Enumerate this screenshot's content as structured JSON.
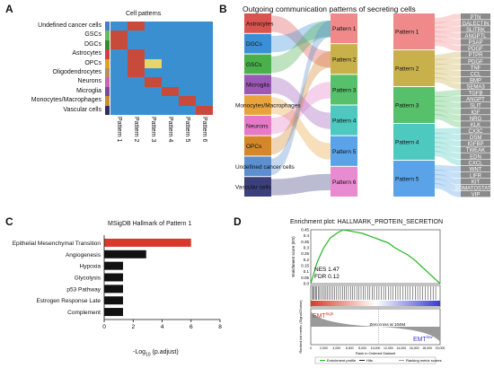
{
  "panels": {
    "a": {
      "label": "A",
      "title": "Cell patterns",
      "rows": [
        "Undefined cancer cells",
        "GSCs",
        "DGCs",
        "Astrocytes",
        "OPCs",
        "Oligodendrocytes",
        "Neurons",
        "Microglia",
        "Monocytes/Macrophages",
        "Vascular cells"
      ],
      "cols": [
        "Pattern 1",
        "Pattern 2",
        "Pattern 3",
        "Pattern 4",
        "Pattern 5",
        "Pattern 6"
      ],
      "row_colors": [
        "#4a7cc4",
        "#5cc05c",
        "#2f8f2f",
        "#d04040",
        "#e6a020",
        "#b09060",
        "#d060b0",
        "#7a4a9a",
        "#c89028",
        "#303060"
      ],
      "matrix": [
        [
          0.3,
          0.9,
          0.3,
          0.2,
          0.2,
          0.2
        ],
        [
          0.8,
          0.3,
          0.4,
          0.2,
          0.2,
          0.2
        ],
        [
          0.9,
          0.4,
          0.3,
          0.2,
          0.2,
          0.2
        ],
        [
          0.4,
          0.9,
          0.3,
          0.2,
          0.2,
          0.2
        ],
        [
          0.3,
          0.8,
          0.5,
          0.2,
          0.2,
          0.2
        ],
        [
          0.3,
          0.9,
          0.3,
          0.2,
          0.2,
          0.2
        ],
        [
          0.2,
          0.3,
          0.9,
          0.2,
          0.2,
          0.2
        ],
        [
          0.2,
          0.3,
          0.2,
          0.9,
          0.2,
          0.2
        ],
        [
          0.2,
          0.2,
          0.3,
          0.2,
          0.9,
          0.2
        ],
        [
          0.2,
          0.2,
          0.2,
          0.3,
          0.2,
          0.9
        ]
      ]
    },
    "b": {
      "label": "B",
      "title": "Outgoing communication patterns of secreting cells",
      "cells": [
        {
          "name": "Astrocytes",
          "color": "#d9534f"
        },
        {
          "name": "DGCs",
          "color": "#3a8fd9"
        },
        {
          "name": "GSCs",
          "color": "#49b04a"
        },
        {
          "name": "Microglia",
          "color": "#9b59b6"
        },
        {
          "name": "Monocytes/Macrophages",
          "color": "#e8a33c"
        },
        {
          "name": "Neurons",
          "color": "#e67ac8"
        },
        {
          "name": "OPCs",
          "color": "#d4872a"
        },
        {
          "name": "Undefined cancer cells",
          "color": "#5b8fd0"
        },
        {
          "name": "Vascular cells",
          "color": "#3b3f7a"
        }
      ],
      "patterns_left": [
        {
          "name": "Pattern 1",
          "color": "#f08a8a"
        },
        {
          "name": "Pattern 2",
          "color": "#c8b04a"
        },
        {
          "name": "Pattern 3",
          "color": "#56c06a"
        },
        {
          "name": "Pattern 4",
          "color": "#4ec9c0"
        },
        {
          "name": "Pattern 5",
          "color": "#5aa3e8"
        },
        {
          "name": "Pattern 6",
          "color": "#e98bd0"
        }
      ],
      "patterns_right": [
        {
          "name": "Pattern 1",
          "color": "#f08a8a"
        },
        {
          "name": "Pattern 2",
          "color": "#c8b04a"
        },
        {
          "name": "Pattern 3",
          "color": "#56c06a"
        },
        {
          "name": "Pattern 4",
          "color": "#4ec9c0"
        },
        {
          "name": "Pattern 5",
          "color": "#5aa3e8"
        }
      ],
      "signals": [
        "PTN",
        "GALECTIN",
        "SLITRK",
        "ANGPTL",
        "PSAP",
        "PDGF",
        "PTPR",
        "PDGF",
        "TNF",
        "CCL",
        "BMP",
        "SEMA3",
        "TGFB",
        "ANGPT",
        "SLIT",
        "IGF",
        "NRG",
        "KLK",
        "CX3C",
        "OSM",
        "IGFBP",
        "TWEAK",
        "EDN",
        "CXCL",
        "WNT",
        "LIFR",
        "KIT",
        "SOMATOSTATIN",
        "VIP"
      ]
    },
    "c": {
      "label": "C",
      "title": "MSigDB Hallmark of Pattern 1",
      "xlabel": "-Log",
      "xlabel_sub": "10",
      "xlabel_tail": " (p.adjust)"
    },
    "d": {
      "label": "D",
      "title": "Enrichment plot: HALLMARK_PROTEIN_SECRETION",
      "ylabel_top": "Enrichment score (ES)",
      "ylabel_bottom": "Ranked list metric (Signal2Noise)",
      "nes": "NES 1.47",
      "fdr": "FDR 0.12",
      "emt_high": "EMT",
      "emt_high_sup": "high",
      "emt_low": "EMT",
      "emt_low_sup": "low",
      "zero_cross": "Zero cross at 10484",
      "xlabel": "Rank in Ordered Dataset",
      "legend": [
        "Enrichment profile",
        "Hits",
        "Ranking metric scores"
      ],
      "yticks_top": [
        "0.45",
        "0.4",
        "0.35",
        "0.3",
        "0.25",
        "0.2",
        "0.15",
        "0.1",
        "0.05",
        "0.0"
      ],
      "xticks": [
        "0",
        "2,000",
        "4,000",
        "6,000",
        "8,000",
        "10,000",
        "12,000",
        "14,000",
        "16,000",
        "18,000",
        "20,000"
      ]
    }
  },
  "chart_data": [
    {
      "type": "bar",
      "title": "MSigDB Hallmark of Pattern 1",
      "categories": [
        "Epithelial Mesenchymal Transition",
        "Angiogenesis",
        "Hypoxia",
        "Glycolysis",
        "p53 Pathway",
        "Estrogen Response Late",
        "Complement"
      ],
      "values": [
        6.0,
        2.9,
        1.3,
        1.3,
        1.3,
        1.3,
        1.3
      ],
      "colors": [
        "#d8392b",
        "#111111",
        "#111111",
        "#111111",
        "#111111",
        "#111111",
        "#111111"
      ],
      "xlim": [
        0,
        8
      ],
      "xticks": [
        "0",
        "2",
        "4",
        "6",
        "8"
      ],
      "xlabel": "-Log10 (p.adjust)"
    },
    {
      "type": "line",
      "title": "Enrichment plot: HALLMARK_PROTEIN_SECRETION",
      "x": [
        0,
        1000,
        2000,
        3000,
        4000,
        5000,
        6000,
        7000,
        8000,
        9000,
        10000,
        11000,
        12000,
        13000,
        14000,
        15000,
        16000,
        17000,
        18000,
        19000,
        20000
      ],
      "series": [
        {
          "name": "Enrichment profile",
          "values": [
            0,
            0.18,
            0.3,
            0.38,
            0.42,
            0.45,
            0.44,
            0.43,
            0.42,
            0.4,
            0.38,
            0.36,
            0.34,
            0.3,
            0.27,
            0.24,
            0.2,
            0.15,
            0.1,
            0.05,
            0.0
          ]
        }
      ],
      "ylim": [
        0,
        0.45
      ],
      "xlim": [
        0,
        20000
      ]
    }
  ]
}
